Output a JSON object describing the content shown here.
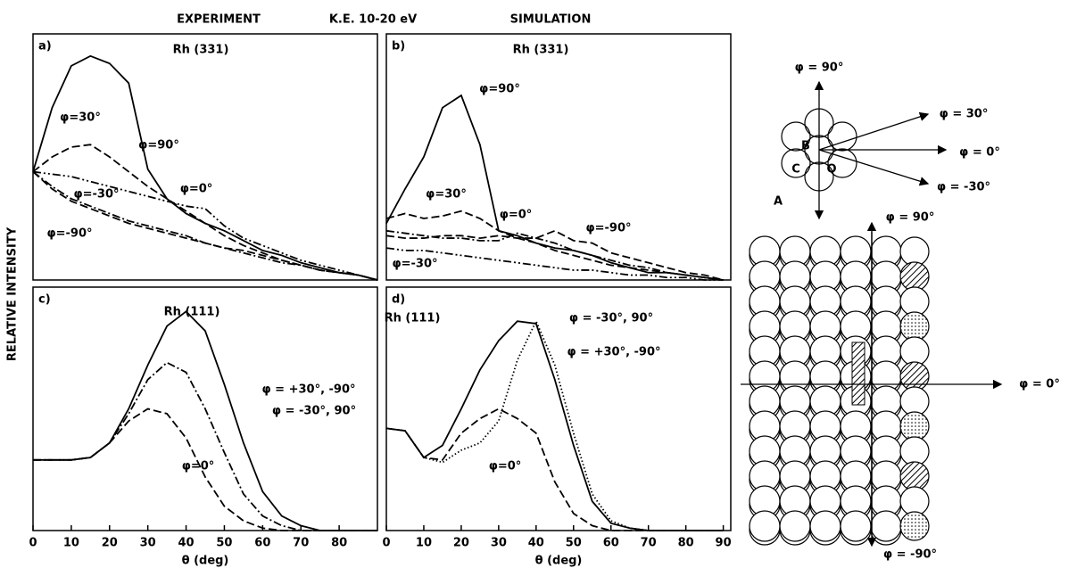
{
  "figure": {
    "header_left": "EXPERIMENT",
    "header_center": "K.E. 10-20 eV",
    "header_right": "SIMULATION",
    "ylabel": "RELATIVE INTENSITY"
  },
  "chart_data": [
    {
      "type": "line",
      "label": "a)",
      "subtitle": "Rh (331)",
      "xlim": [
        0,
        90
      ],
      "ylim": [
        0,
        1
      ],
      "x": [
        0,
        5,
        10,
        15,
        20,
        25,
        30,
        35,
        40,
        45,
        50,
        55,
        60,
        65,
        70,
        75,
        80,
        85,
        90
      ],
      "series": [
        {
          "name": "φ=90°",
          "color": "#000",
          "dash": "solid",
          "values": [
            0.44,
            0.7,
            0.87,
            0.91,
            0.88,
            0.8,
            0.45,
            0.33,
            0.27,
            0.23,
            0.2,
            0.16,
            0.12,
            0.1,
            0.07,
            0.05,
            0.03,
            0.02,
            0
          ]
        },
        {
          "name": "φ=30°",
          "color": "#000",
          "dash": "dashed",
          "values": [
            0.44,
            0.5,
            0.54,
            0.55,
            0.5,
            0.44,
            0.38,
            0.33,
            0.28,
            0.23,
            0.18,
            0.14,
            0.11,
            0.08,
            0.06,
            0.04,
            0.03,
            0.02,
            0
          ]
        },
        {
          "name": "φ=0°",
          "color": "#000",
          "dash": "dashdotdot",
          "values": [
            0.44,
            0.43,
            0.42,
            0.4,
            0.38,
            0.36,
            0.34,
            0.32,
            0.3,
            0.29,
            0.22,
            0.17,
            0.14,
            0.11,
            0.08,
            0.06,
            0.04,
            0.02,
            0
          ]
        },
        {
          "name": "φ=-30°",
          "color": "#000",
          "dash": "dashdot",
          "values": [
            0.44,
            0.38,
            0.33,
            0.3,
            0.27,
            0.24,
            0.22,
            0.2,
            0.18,
            0.15,
            0.13,
            0.11,
            0.09,
            0.07,
            0.06,
            0.04,
            0.03,
            0.02,
            0
          ]
        },
        {
          "name": "φ=-90°",
          "color": "#000",
          "dash": "dashed",
          "values": [
            0.44,
            0.37,
            0.32,
            0.29,
            0.26,
            0.23,
            0.21,
            0.19,
            0.17,
            0.15,
            0.13,
            0.12,
            0.1,
            0.08,
            0.06,
            0.04,
            0.03,
            0.02,
            0
          ]
        }
      ]
    },
    {
      "type": "line",
      "label": "b)",
      "subtitle": "Rh (331)",
      "xlim": [
        0,
        92
      ],
      "ylim": [
        0,
        1
      ],
      "x": [
        0,
        5,
        10,
        15,
        20,
        25,
        30,
        35,
        40,
        45,
        50,
        55,
        60,
        65,
        70,
        75,
        80,
        85,
        90
      ],
      "series": [
        {
          "name": "φ=90°",
          "color": "#000",
          "dash": "solid",
          "values": [
            0.23,
            0.37,
            0.5,
            0.7,
            0.75,
            0.55,
            0.2,
            0.18,
            0.15,
            0.13,
            0.12,
            0.1,
            0.07,
            0.05,
            0.03,
            0.03,
            0.02,
            0.01,
            0
          ]
        },
        {
          "name": "φ=30°",
          "color": "#000",
          "dash": "dashed",
          "values": [
            0.25,
            0.27,
            0.25,
            0.26,
            0.28,
            0.25,
            0.2,
            0.17,
            0.15,
            0.12,
            0.1,
            0.08,
            0.06,
            0.05,
            0.04,
            0.03,
            0.02,
            0.01,
            0
          ]
        },
        {
          "name": "φ=0°",
          "color": "#000",
          "dash": "dashdot",
          "values": [
            0.2,
            0.19,
            0.18,
            0.17,
            0.17,
            0.16,
            0.16,
            0.19,
            0.17,
            0.15,
            0.12,
            0.1,
            0.08,
            0.06,
            0.05,
            0.03,
            0.02,
            0.01,
            0
          ]
        },
        {
          "name": "φ=-90°",
          "color": "#000",
          "dash": "dashed",
          "values": [
            0.18,
            0.17,
            0.17,
            0.18,
            0.18,
            0.17,
            0.18,
            0.17,
            0.17,
            0.2,
            0.16,
            0.15,
            0.11,
            0.09,
            0.07,
            0.05,
            0.03,
            0.02,
            0
          ]
        },
        {
          "name": "φ=-30°",
          "color": "#000",
          "dash": "dashdotdot",
          "values": [
            0.13,
            0.12,
            0.12,
            0.11,
            0.1,
            0.09,
            0.08,
            0.07,
            0.06,
            0.05,
            0.04,
            0.04,
            0.03,
            0.02,
            0.02,
            0.01,
            0.01,
            0,
            0
          ]
        }
      ]
    },
    {
      "type": "line",
      "label": "c)",
      "subtitle": "Rh (111)",
      "xlim": [
        0,
        90
      ],
      "ylim": [
        0,
        1
      ],
      "xlabel": "θ (deg)",
      "xticks": [
        0,
        10,
        20,
        30,
        40,
        50,
        60,
        70,
        80
      ],
      "x": [
        0,
        5,
        10,
        15,
        20,
        25,
        30,
        35,
        40,
        45,
        50,
        55,
        60,
        65,
        70,
        75,
        80,
        85,
        90
      ],
      "series": [
        {
          "name": "φ = -30°, 90°",
          "color": "#000",
          "dash": "solid",
          "values": [
            0.29,
            0.29,
            0.29,
            0.3,
            0.36,
            0.5,
            0.68,
            0.84,
            0.9,
            0.82,
            0.6,
            0.36,
            0.16,
            0.06,
            0.02,
            0,
            0,
            0,
            0
          ]
        },
        {
          "name": "φ = +30°, -90°",
          "color": "#000",
          "dash": "dashdot",
          "values": [
            0.29,
            0.29,
            0.29,
            0.3,
            0.36,
            0.48,
            0.62,
            0.69,
            0.65,
            0.5,
            0.32,
            0.15,
            0.06,
            0.02,
            0,
            0,
            0,
            0,
            0
          ]
        },
        {
          "name": "φ=0°",
          "color": "#000",
          "dash": "dashed",
          "values": [
            0.29,
            0.29,
            0.29,
            0.3,
            0.36,
            0.45,
            0.5,
            0.48,
            0.38,
            0.22,
            0.1,
            0.04,
            0.01,
            0,
            0,
            0,
            0,
            0,
            0
          ]
        }
      ]
    },
    {
      "type": "line",
      "label": "d)",
      "subtitle": "Rh (111)",
      "xlim": [
        0,
        92
      ],
      "ylim": [
        0,
        1
      ],
      "xlabel": "θ (deg)",
      "xticks": [
        0,
        10,
        20,
        30,
        40,
        50,
        60,
        70,
        80,
        90
      ],
      "x": [
        0,
        5,
        10,
        15,
        20,
        25,
        30,
        35,
        40,
        45,
        50,
        55,
        60,
        65,
        70,
        75,
        80,
        85,
        90
      ],
      "series": [
        {
          "name": "φ = -30°, 90°",
          "color": "#000",
          "dash": "solid",
          "values": [
            0.42,
            0.41,
            0.3,
            0.35,
            0.5,
            0.66,
            0.78,
            0.86,
            0.85,
            0.62,
            0.35,
            0.12,
            0.03,
            0.01,
            0,
            0,
            0,
            0,
            0
          ]
        },
        {
          "name": "φ = +30°, -90°",
          "color": "#000",
          "dash": "dotted",
          "values": [
            0.42,
            0.41,
            0.3,
            0.28,
            0.33,
            0.36,
            0.45,
            0.7,
            0.86,
            0.68,
            0.4,
            0.15,
            0.04,
            0.01,
            0,
            0,
            0,
            0,
            0
          ]
        },
        {
          "name": "φ=0°",
          "color": "#000",
          "dash": "dashed",
          "values": [
            0.42,
            0.41,
            0.3,
            0.29,
            0.4,
            0.46,
            0.5,
            0.46,
            0.4,
            0.2,
            0.07,
            0.02,
            0,
            0,
            0,
            0,
            0,
            0,
            0
          ]
        }
      ]
    }
  ],
  "diagram": {
    "labels": [
      "φ = 90°",
      "φ = 30°",
      "φ = 0°",
      "φ = -30°",
      "B",
      "C",
      "O",
      "A",
      "φ = 90°",
      "φ = 0°",
      "φ = -90°"
    ]
  }
}
